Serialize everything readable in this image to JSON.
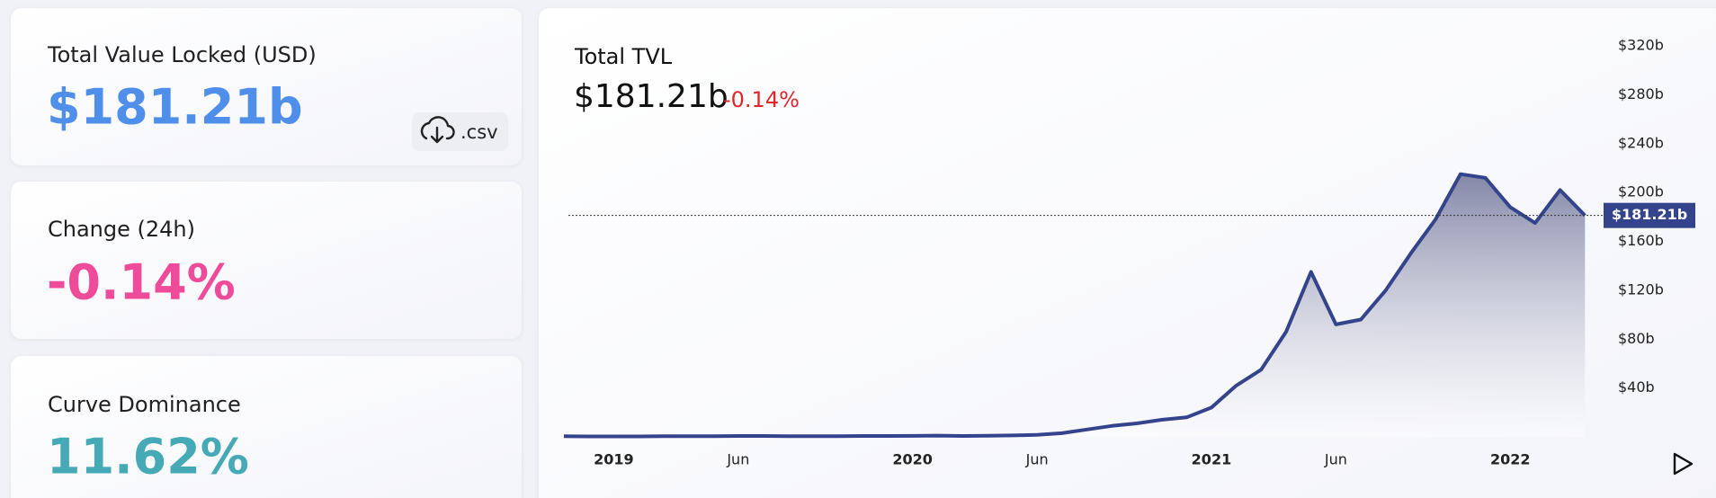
{
  "cards": [
    {
      "label": "Total Value Locked (USD)",
      "value": "$181.21b"
    },
    {
      "label": "Change (24h)",
      "value": "-0.14%"
    },
    {
      "label": "Curve Dominance",
      "value": "11.62%"
    }
  ],
  "download": {
    "label": ".csv"
  },
  "chart_data": {
    "type": "area",
    "title": "Total TVL",
    "summary": {
      "value": "$181.21b",
      "change": "-0.14%"
    },
    "x": [
      "2018-11",
      "2018-12",
      "2019-01",
      "2019-02",
      "2019-03",
      "2019-04",
      "2019-05",
      "2019-06",
      "2019-07",
      "2019-08",
      "2019-09",
      "2019-10",
      "2019-11",
      "2019-12",
      "2020-01",
      "2020-02",
      "2020-03",
      "2020-04",
      "2020-05",
      "2020-06",
      "2020-07",
      "2020-08",
      "2020-09",
      "2020-10",
      "2020-11",
      "2020-12",
      "2021-01",
      "2021-02",
      "2021-03",
      "2021-04",
      "2021-05",
      "2021-06",
      "2021-07",
      "2021-08",
      "2021-09",
      "2021-10",
      "2021-11",
      "2021-12",
      "2022-01",
      "2022-02",
      "2022-03",
      "2022-04"
    ],
    "series": [
      {
        "name": "TVL",
        "color": "#34448c",
        "values": [
          0.5,
          0.4,
          0.4,
          0.4,
          0.5,
          0.6,
          0.6,
          0.7,
          0.7,
          0.6,
          0.6,
          0.6,
          0.7,
          0.7,
          0.8,
          1,
          0.7,
          0.9,
          1.2,
          1.6,
          3,
          6,
          9,
          11,
          14,
          16,
          24,
          42,
          55,
          86,
          135,
          92,
          96,
          120,
          150,
          178,
          215,
          212,
          188,
          175,
          202,
          181.21
        ]
      }
    ],
    "xlim": [
      "2018-11",
      "2022-05"
    ],
    "xticks": [
      {
        "value": "2019-01",
        "label": "2019"
      },
      {
        "value": "2019-06",
        "label": "Jun"
      },
      {
        "value": "2020-01",
        "label": "2020"
      },
      {
        "value": "2020-06",
        "label": "Jun"
      },
      {
        "value": "2021-01",
        "label": "2021"
      },
      {
        "value": "2021-06",
        "label": "Jun"
      },
      {
        "value": "2022-01",
        "label": "2022"
      }
    ],
    "ylim": [
      0,
      320
    ],
    "yticks": [
      {
        "value": 40,
        "label": "$40b"
      },
      {
        "value": 80,
        "label": "$80b"
      },
      {
        "value": 120,
        "label": "$120b"
      },
      {
        "value": 160,
        "label": "$160b"
      },
      {
        "value": 200,
        "label": "$200b"
      },
      {
        "value": 240,
        "label": "$240b"
      },
      {
        "value": 280,
        "label": "$280b"
      },
      {
        "value": 320,
        "label": "$320b"
      }
    ],
    "reference_line": {
      "value": 181.21,
      "label": "$181.21b"
    }
  }
}
